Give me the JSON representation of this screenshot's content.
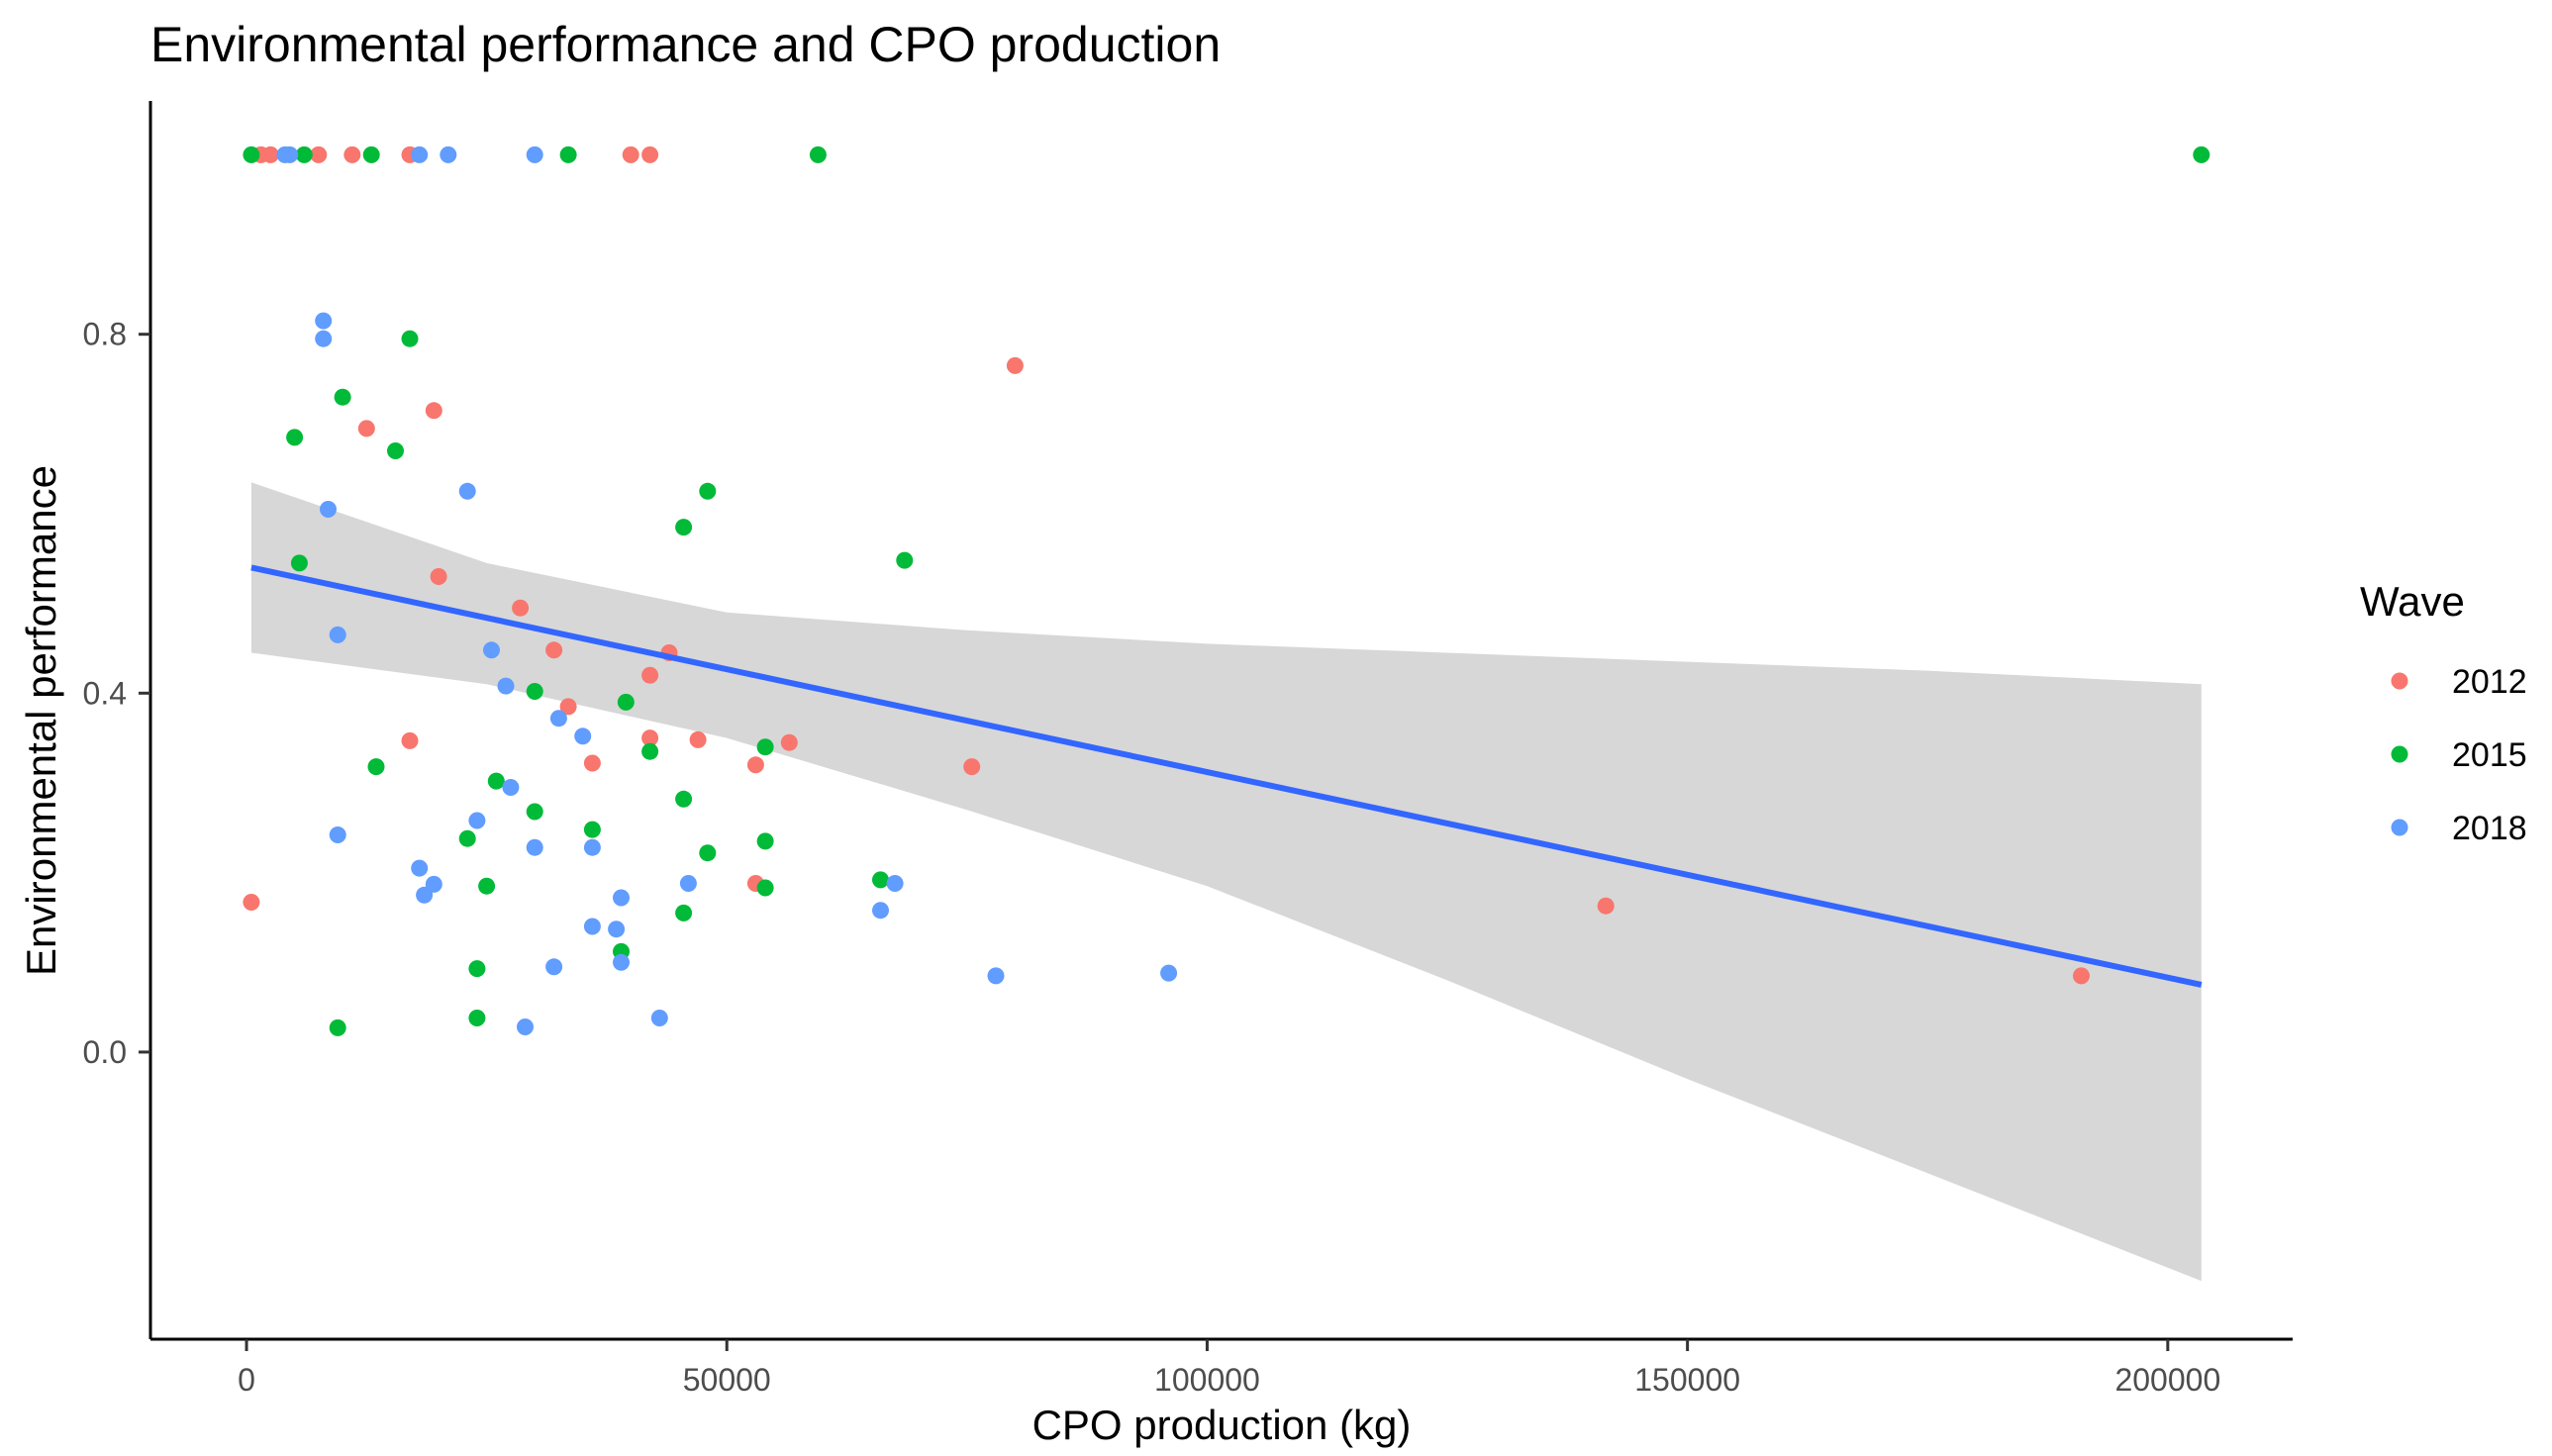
{
  "chart_data": {
    "type": "scatter",
    "title": "Environmental performance and CPO production",
    "xlabel": "CPO production (kg)",
    "ylabel": "Environmental performance",
    "xlim": [
      -10000,
      213000
    ],
    "ylim": [
      -0.32,
      1.06
    ],
    "xticks": [
      0,
      50000,
      100000,
      150000,
      200000
    ],
    "xtick_labels": [
      "0",
      "50000",
      "100000",
      "150000",
      "200000"
    ],
    "yticks": [
      0.0,
      0.4,
      0.8
    ],
    "ytick_labels": [
      "0.0",
      "0.4",
      "0.8"
    ],
    "grid": false,
    "legend": {
      "title": "Wave",
      "position": "right"
    },
    "series": [
      {
        "name": "2012",
        "color": "#F8766D",
        "points": [
          [
            1500,
            1.0
          ],
          [
            2500,
            1.0
          ],
          [
            7500,
            1.0
          ],
          [
            11000,
            1.0
          ],
          [
            17000,
            1.0
          ],
          [
            40000,
            1.0
          ],
          [
            42000,
            1.0
          ],
          [
            80000,
            0.765
          ],
          [
            19500,
            0.715
          ],
          [
            12500,
            0.695
          ],
          [
            20000,
            0.53
          ],
          [
            28500,
            0.495
          ],
          [
            32000,
            0.448
          ],
          [
            44000,
            0.445
          ],
          [
            42000,
            0.42
          ],
          [
            33500,
            0.385
          ],
          [
            17000,
            0.347
          ],
          [
            42000,
            0.35
          ],
          [
            47000,
            0.348
          ],
          [
            56500,
            0.345
          ],
          [
            36000,
            0.322
          ],
          [
            53000,
            0.32
          ],
          [
            75500,
            0.318
          ],
          [
            53000,
            0.188
          ],
          [
            500,
            0.167
          ],
          [
            141500,
            0.163
          ],
          [
            191000,
            0.085
          ]
        ]
      },
      {
        "name": "2015",
        "color": "#00BA38",
        "points": [
          [
            500,
            1.0
          ],
          [
            6000,
            1.0
          ],
          [
            13000,
            1.0
          ],
          [
            33500,
            1.0
          ],
          [
            59500,
            1.0
          ],
          [
            203500,
            1.0
          ],
          [
            17000,
            0.795
          ],
          [
            10000,
            0.73
          ],
          [
            5000,
            0.685
          ],
          [
            15500,
            0.67
          ],
          [
            48000,
            0.625
          ],
          [
            45500,
            0.585
          ],
          [
            5500,
            0.545
          ],
          [
            68500,
            0.548
          ],
          [
            30000,
            0.402
          ],
          [
            39500,
            0.39
          ],
          [
            54000,
            0.34
          ],
          [
            42000,
            0.335
          ],
          [
            13500,
            0.318
          ],
          [
            26000,
            0.302
          ],
          [
            45500,
            0.282
          ],
          [
            30000,
            0.268
          ],
          [
            36000,
            0.248
          ],
          [
            23000,
            0.238
          ],
          [
            54000,
            0.235
          ],
          [
            48000,
            0.222
          ],
          [
            66000,
            0.192
          ],
          [
            25000,
            0.185
          ],
          [
            54000,
            0.183
          ],
          [
            45500,
            0.155
          ],
          [
            39000,
            0.112
          ],
          [
            24000,
            0.093
          ],
          [
            24000,
            0.038
          ],
          [
            9500,
            0.027
          ]
        ]
      },
      {
        "name": "2018",
        "color": "#619CFF",
        "points": [
          [
            4000,
            1.0
          ],
          [
            4500,
            1.0
          ],
          [
            18000,
            1.0
          ],
          [
            21000,
            1.0
          ],
          [
            30000,
            1.0
          ],
          [
            8000,
            0.815
          ],
          [
            8000,
            0.795
          ],
          [
            23000,
            0.625
          ],
          [
            8500,
            0.605
          ],
          [
            9500,
            0.465
          ],
          [
            25500,
            0.448
          ],
          [
            27000,
            0.408
          ],
          [
            32500,
            0.372
          ],
          [
            35000,
            0.352
          ],
          [
            27500,
            0.295
          ],
          [
            24000,
            0.258
          ],
          [
            9500,
            0.242
          ],
          [
            30000,
            0.228
          ],
          [
            36000,
            0.228
          ],
          [
            18000,
            0.205
          ],
          [
            19500,
            0.187
          ],
          [
            18500,
            0.175
          ],
          [
            46000,
            0.188
          ],
          [
            67500,
            0.188
          ],
          [
            39000,
            0.172
          ],
          [
            66000,
            0.158
          ],
          [
            36000,
            0.14
          ],
          [
            38500,
            0.137
          ],
          [
            39000,
            0.1
          ],
          [
            32000,
            0.095
          ],
          [
            78000,
            0.085
          ],
          [
            96000,
            0.088
          ],
          [
            43000,
            0.038
          ],
          [
            29000,
            0.028
          ]
        ]
      }
    ],
    "trend_line": {
      "color": "#3366FF",
      "x": [
        500,
        203500
      ],
      "y": [
        0.54,
        0.075
      ]
    },
    "confidence_band": {
      "color": "#D3D3D3",
      "x": [
        500,
        25000,
        50000,
        75000,
        100000,
        125000,
        150000,
        175000,
        203500
      ],
      "upper": [
        0.635,
        0.545,
        0.49,
        0.47,
        0.455,
        0.445,
        0.435,
        0.425,
        0.41
      ],
      "lower": [
        0.445,
        0.41,
        0.35,
        0.27,
        0.185,
        0.08,
        -0.03,
        -0.135,
        -0.255
      ]
    }
  }
}
